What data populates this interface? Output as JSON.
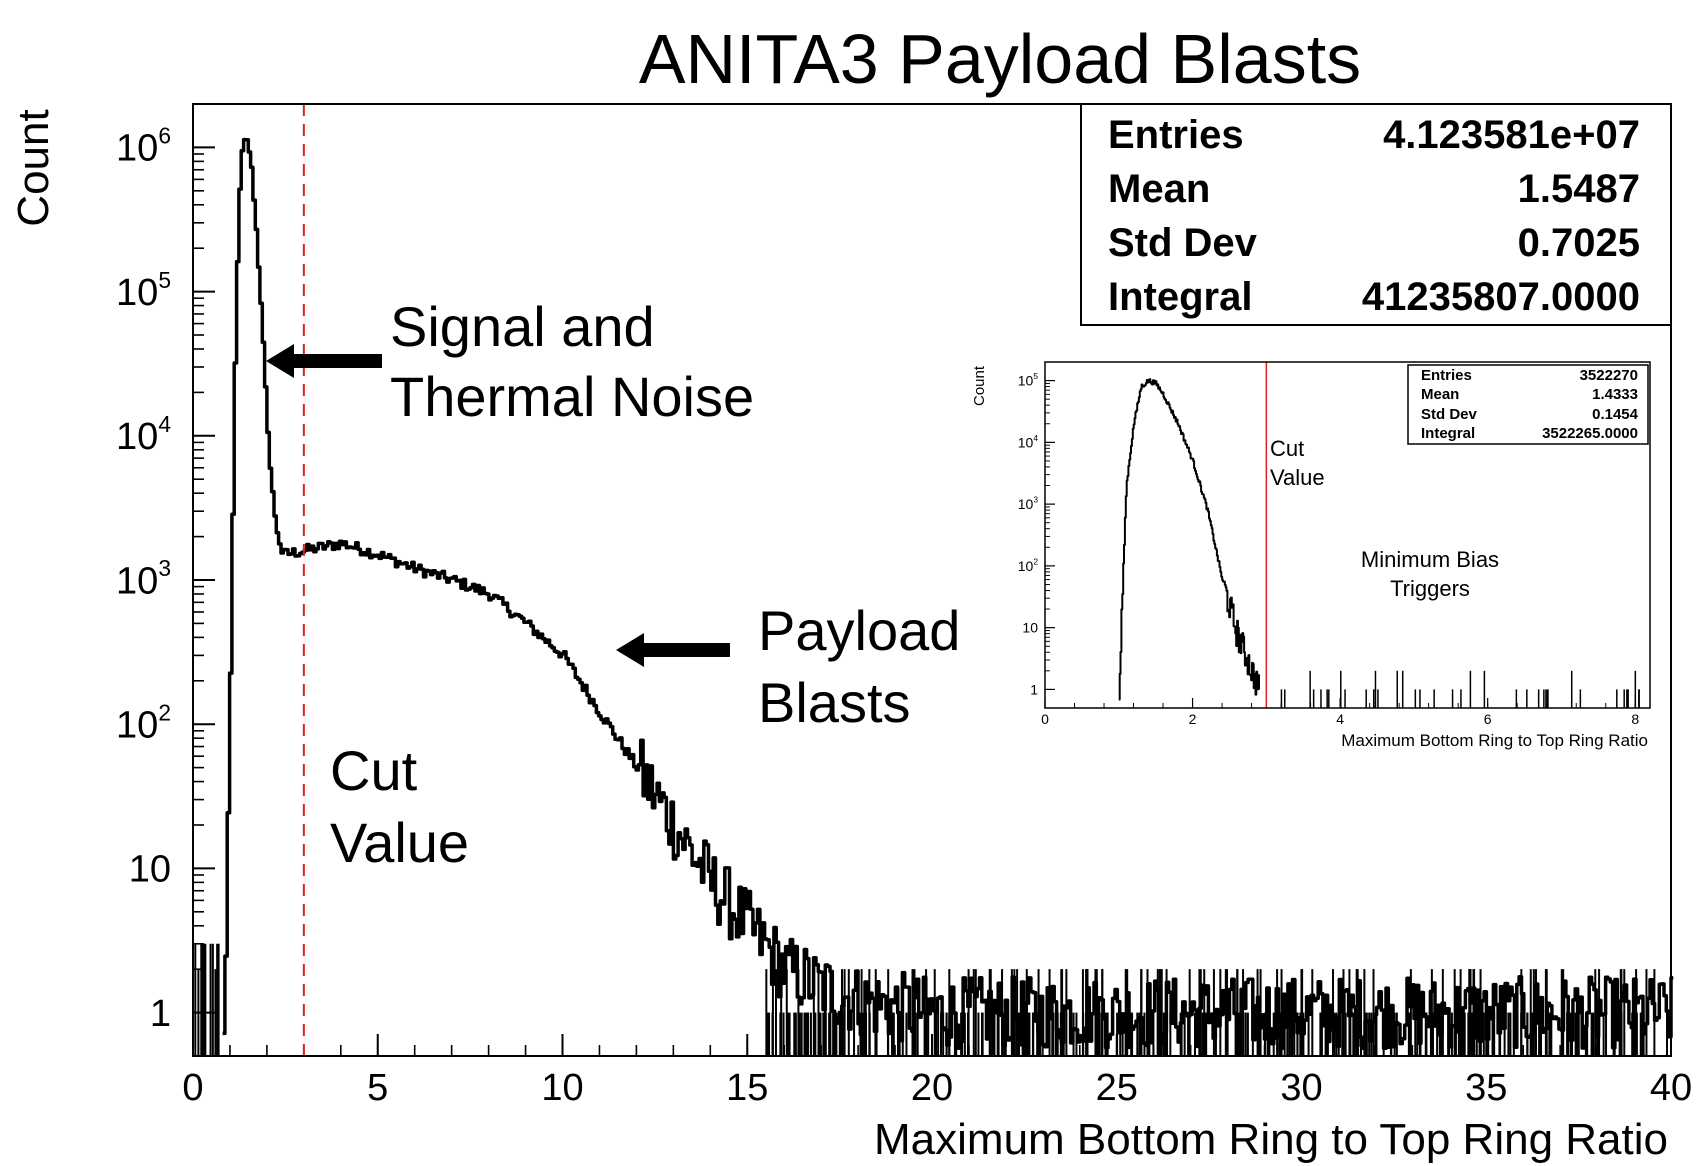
{
  "colors": {
    "cut_line": "#e02020",
    "cut_text": "#e02020",
    "histogram": "#000000"
  },
  "chart_data": [
    {
      "type": "histogram",
      "title": "ANITA3 Payload Blasts",
      "xlabel": "Maximum Bottom Ring to Top Ring Ratio",
      "ylabel": "Count",
      "yscale": "log",
      "xlim": [
        0,
        40
      ],
      "ylim": [
        0.5,
        2000000
      ],
      "grid": false,
      "xticks": [
        {
          "v": 0,
          "label": "0"
        },
        {
          "v": 5,
          "label": "5"
        },
        {
          "v": 10,
          "label": "10"
        },
        {
          "v": 15,
          "label": "15"
        },
        {
          "v": 20,
          "label": "20"
        },
        {
          "v": 25,
          "label": "25"
        },
        {
          "v": 30,
          "label": "30"
        },
        {
          "v": 35,
          "label": "35"
        },
        {
          "v": 40,
          "label": "40"
        }
      ],
      "yticks": [
        {
          "v": 1,
          "base": "1",
          "exp": ""
        },
        {
          "v": 10,
          "base": "10",
          "exp": ""
        },
        {
          "v": 100,
          "base": "10",
          "exp": "2"
        },
        {
          "v": 1000,
          "base": "10",
          "exp": "3"
        },
        {
          "v": 10000,
          "base": "10",
          "exp": "4"
        },
        {
          "v": 100000,
          "base": "10",
          "exp": "5"
        },
        {
          "v": 1000000,
          "base": "10",
          "exp": "6"
        }
      ],
      "curve_points": [
        [
          0.8,
          0.6
        ],
        [
          0.9,
          8
        ],
        [
          1.0,
          300
        ],
        [
          1.1,
          20000
        ],
        [
          1.2,
          300000
        ],
        [
          1.3,
          900000
        ],
        [
          1.4,
          1150000
        ],
        [
          1.5,
          950000
        ],
        [
          1.6,
          550000
        ],
        [
          1.8,
          100000
        ],
        [
          2.0,
          10000
        ],
        [
          2.2,
          2500
        ],
        [
          2.4,
          1500
        ],
        [
          3,
          1600
        ],
        [
          4,
          1800
        ],
        [
          5,
          1500
        ],
        [
          6,
          1200
        ],
        [
          7,
          1000
        ],
        [
          8,
          800
        ],
        [
          9,
          500
        ],
        [
          10,
          300
        ],
        [
          11,
          120
        ],
        [
          12,
          50
        ],
        [
          13,
          20
        ],
        [
          14,
          8
        ],
        [
          15,
          4
        ],
        [
          16,
          2
        ],
        [
          17,
          1.5
        ],
        [
          18,
          1.2
        ],
        [
          20,
          1
        ],
        [
          25,
          1
        ],
        [
          30,
          1
        ],
        [
          35,
          1
        ],
        [
          40,
          1
        ]
      ],
      "cut_value": 3,
      "stats": [
        {
          "label": "Entries",
          "value": "4.123581e+07"
        },
        {
          "label": "Mean",
          "value": "1.5487"
        },
        {
          "label": "Std Dev",
          "value": "0.7025"
        },
        {
          "label": "Integral",
          "value": "41235807.0000"
        }
      ],
      "annotations": [
        {
          "id": "signal",
          "lines": [
            "Signal and",
            "Thermal Noise"
          ]
        },
        {
          "id": "payload",
          "lines": [
            "Payload",
            "Blasts"
          ]
        },
        {
          "id": "cut",
          "lines": [
            "Cut",
            "Value"
          ]
        }
      ]
    },
    {
      "type": "histogram",
      "title": "",
      "xlabel": "Maximum Bottom Ring to Top Ring Ratio",
      "ylabel": "Count",
      "yscale": "log",
      "xlim": [
        0,
        8.2
      ],
      "ylim": [
        0.5,
        200000
      ],
      "grid": false,
      "xticks": [
        {
          "v": 0,
          "label": "0"
        },
        {
          "v": 2,
          "label": "2"
        },
        {
          "v": 4,
          "label": "4"
        },
        {
          "v": 6,
          "label": "6"
        },
        {
          "v": 8,
          "label": "8"
        }
      ],
      "yticks": [
        {
          "v": 1,
          "base": "1",
          "exp": ""
        },
        {
          "v": 10,
          "base": "10",
          "exp": ""
        },
        {
          "v": 100,
          "base": "10",
          "exp": "2"
        },
        {
          "v": 1000,
          "base": "10",
          "exp": "3"
        },
        {
          "v": 10000,
          "base": "10",
          "exp": "4"
        },
        {
          "v": 100000,
          "base": "10",
          "exp": "5"
        }
      ],
      "curve_points": [
        [
          1.0,
          0.6
        ],
        [
          1.05,
          50
        ],
        [
          1.1,
          2000
        ],
        [
          1.2,
          20000
        ],
        [
          1.3,
          80000
        ],
        [
          1.4,
          100000
        ],
        [
          1.5,
          90000
        ],
        [
          1.6,
          60000
        ],
        [
          1.8,
          20000
        ],
        [
          2.0,
          5000
        ],
        [
          2.2,
          800
        ],
        [
          2.4,
          60
        ],
        [
          2.6,
          8
        ],
        [
          2.8,
          2
        ],
        [
          2.9,
          1
        ]
      ],
      "cut_value": 3,
      "stats": [
        {
          "label": "Entries",
          "value": "3522270"
        },
        {
          "label": "Mean",
          "value": "1.4333"
        },
        {
          "label": "Std Dev",
          "value": "0.1454"
        },
        {
          "label": "Integral",
          "value": "3522265.0000"
        }
      ],
      "annotations": [
        {
          "id": "cut",
          "lines": [
            "Cut",
            "Value"
          ]
        },
        {
          "id": "minbias",
          "lines": [
            "Minimum Bias",
            "Triggers"
          ]
        }
      ]
    }
  ]
}
